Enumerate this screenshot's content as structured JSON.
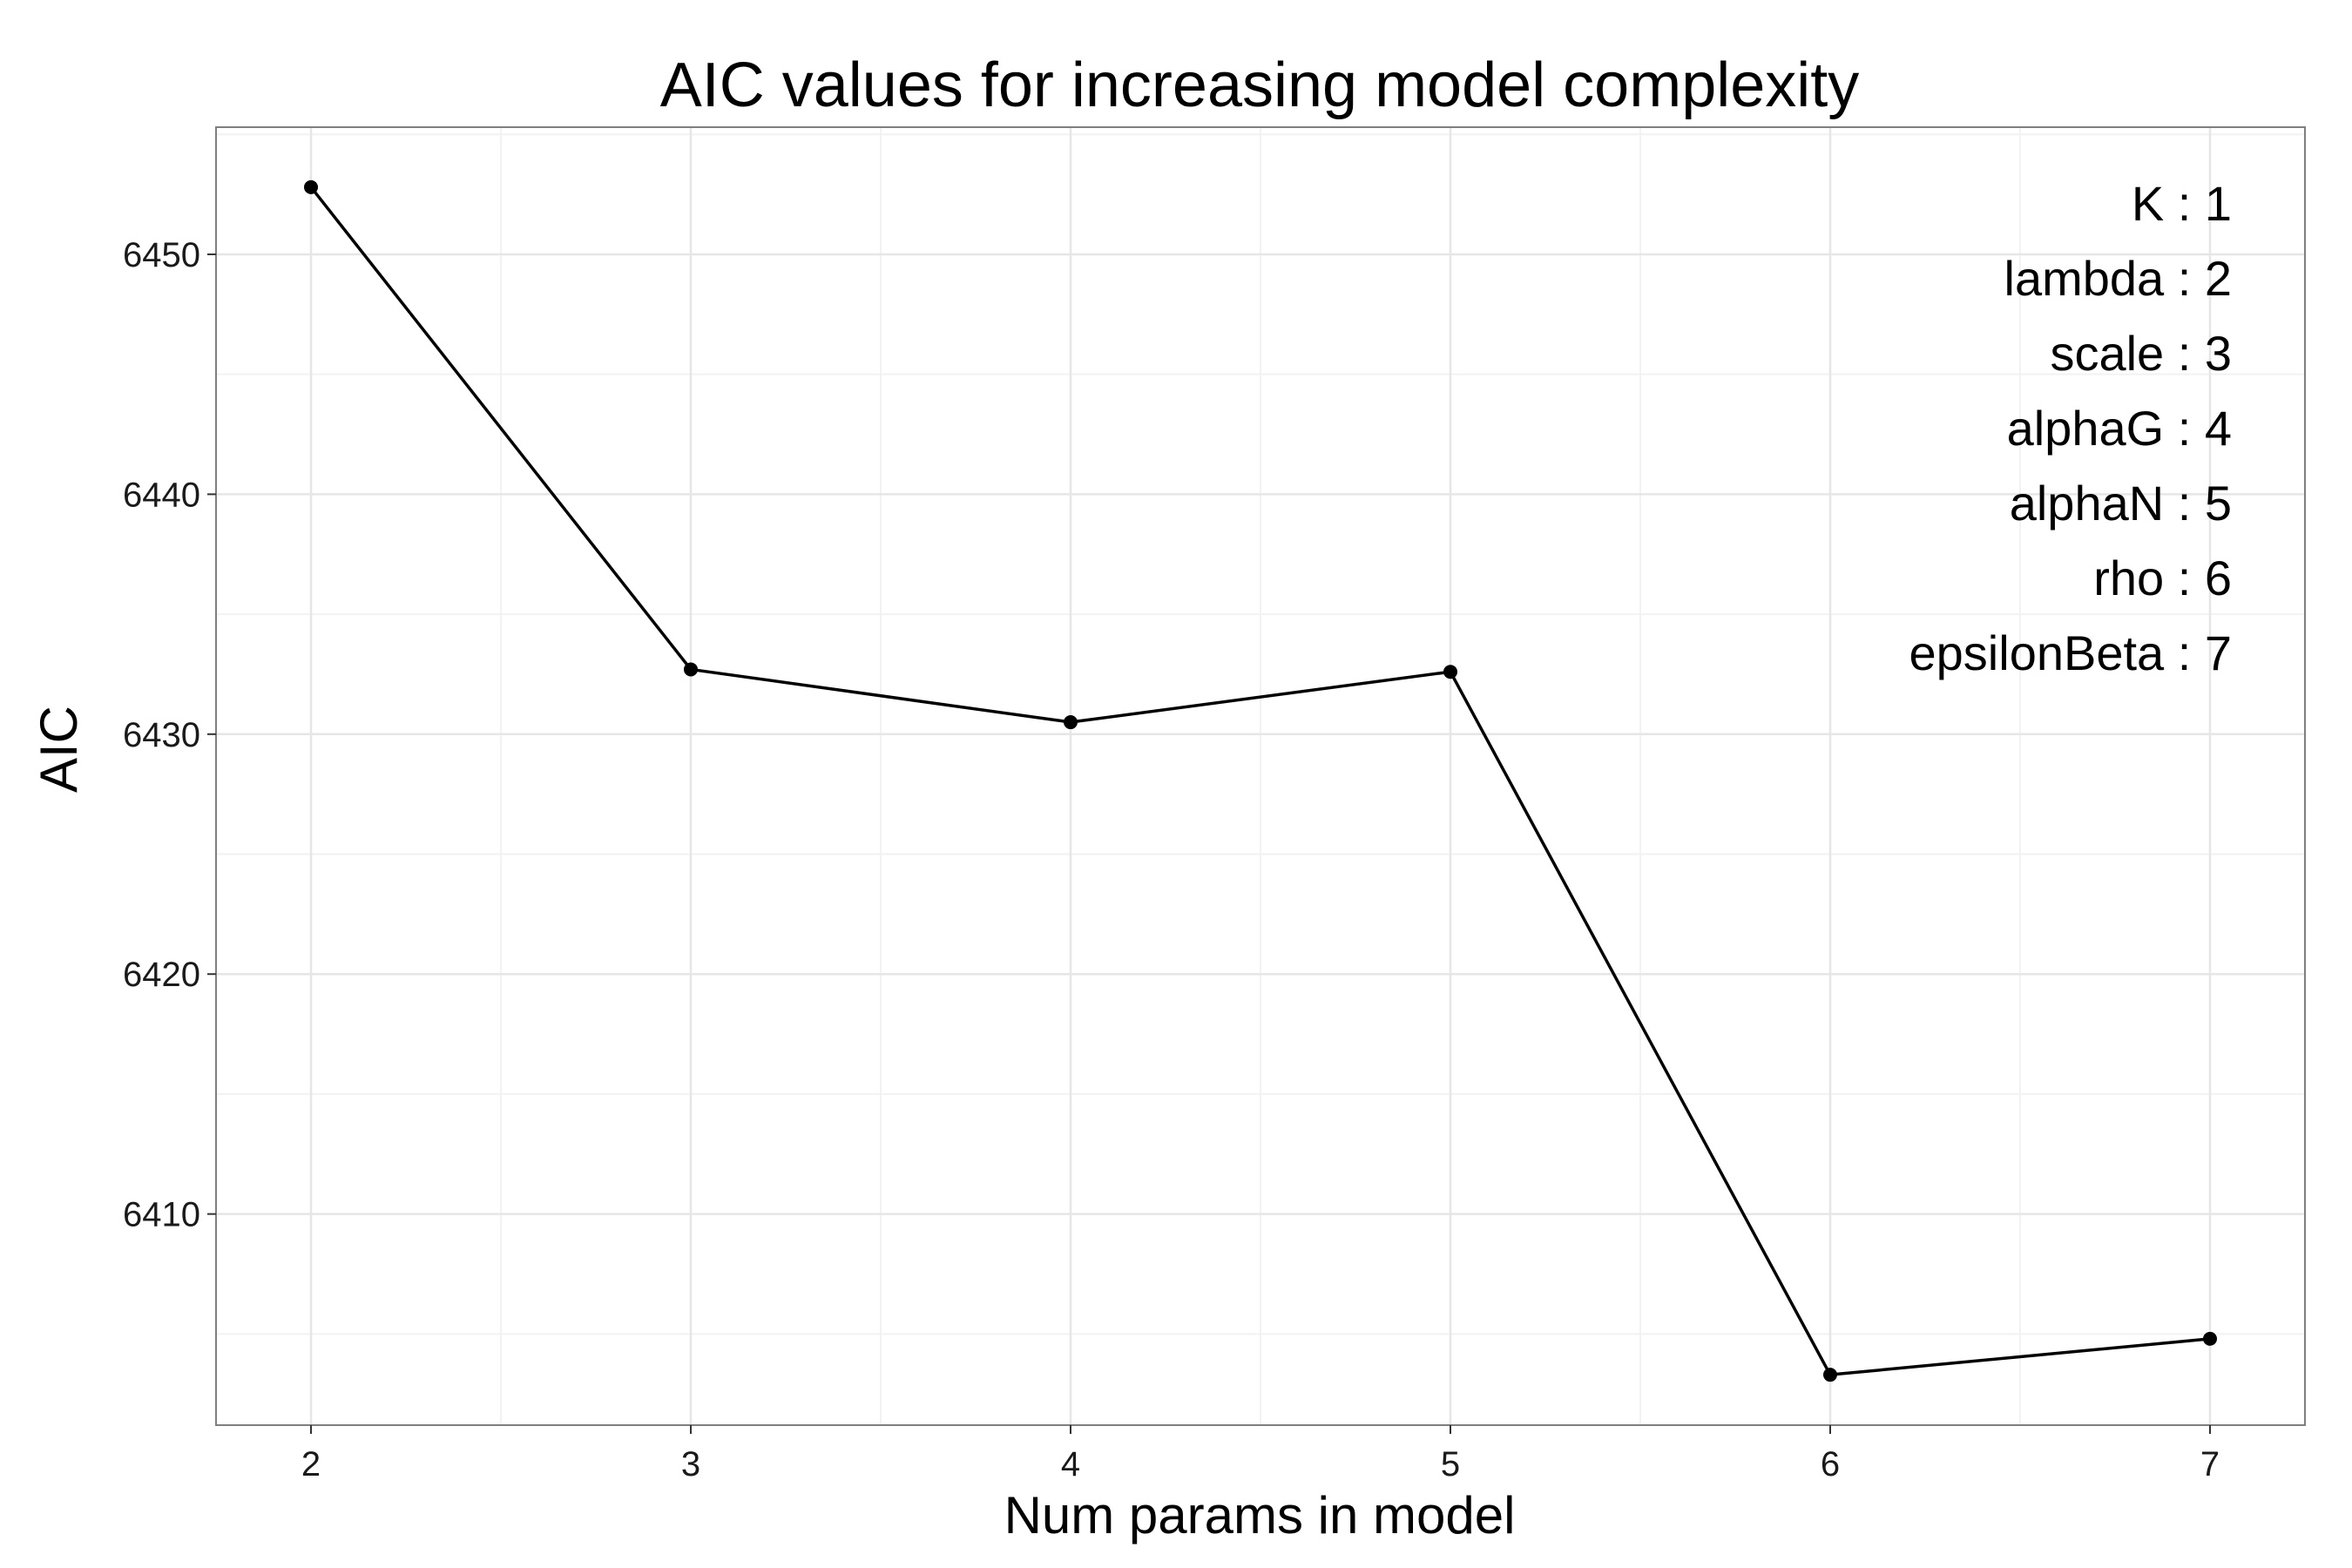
{
  "chart_data": {
    "type": "line",
    "title": "AIC values for increasing model complexity",
    "xlabel": "Num params in model",
    "ylabel": "AIC",
    "x": [
      2,
      3,
      4,
      5,
      6,
      7
    ],
    "series": [
      {
        "name": "AIC",
        "values": [
          6452.8,
          6432.7,
          6430.5,
          6432.6,
          6403.3,
          6404.8
        ]
      }
    ],
    "xlim": [
      1.75,
      7.25
    ],
    "ylim": [
      6401.2,
      6455.3
    ],
    "x_ticks": [
      2,
      3,
      4,
      5,
      6,
      7
    ],
    "y_ticks": [
      6410,
      6420,
      6430,
      6440,
      6450
    ],
    "grid": true,
    "legend_position": "top-right",
    "annotations": [
      "K : 1",
      "lambda : 2",
      "scale : 3",
      "alphaG : 4",
      "alphaN : 5",
      "rho : 6",
      "epsilonBeta : 7"
    ],
    "colors": {
      "line": "#000000",
      "panel_border": "#7f7f7f",
      "grid_major": "#e6e6e6",
      "grid_minor": "#f2f2f2"
    }
  }
}
